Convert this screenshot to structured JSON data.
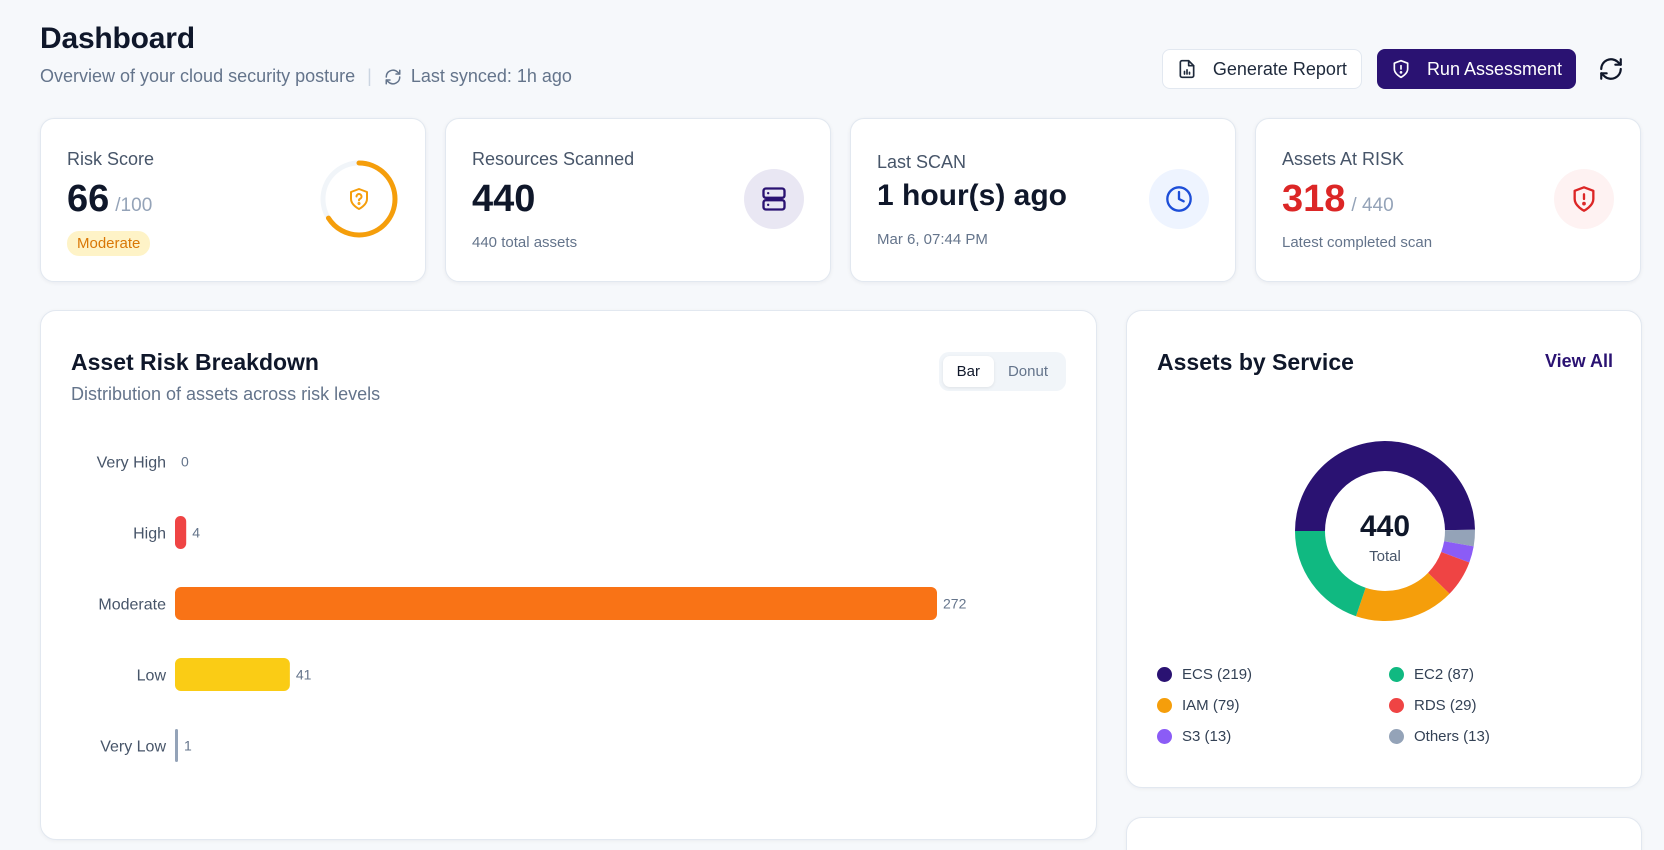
{
  "header": {
    "title": "Dashboard",
    "subtitle": "Overview of your cloud security posture",
    "separator": "|",
    "last_synced": "Last synced: 1h ago",
    "generate_report_label": "Generate Report",
    "run_assessment_label": "Run Assessment"
  },
  "cards": {
    "risk": {
      "label": "Risk Score",
      "value": "66",
      "suffix": "/100",
      "badge": "Moderate",
      "score_fraction": 0.66,
      "color": "#f59e0b",
      "icon": "shield-question-icon"
    },
    "resources": {
      "label": "Resources Scanned",
      "value": "440",
      "note": "440 total assets",
      "icon": "server-icon"
    },
    "scan": {
      "label": "Last SCAN",
      "value": "1 hour(s) ago",
      "note": "Mar 6, 07:44 PM",
      "icon": "clock-icon"
    },
    "at_risk": {
      "label": "Assets At RISK",
      "value": "318",
      "suffix": "/ 440",
      "note": "Latest completed scan",
      "color": "#dc2626",
      "icon": "shield-alert-icon"
    }
  },
  "breakdown": {
    "title": "Asset Risk Breakdown",
    "subtitle": "Distribution of assets across risk levels",
    "toggle": {
      "bar": "Bar",
      "donut": "Donut",
      "active": "Bar"
    }
  },
  "services": {
    "title": "Assets by Service",
    "view_all": "View All",
    "total_value": "440",
    "total_label": "Total",
    "legend": [
      {
        "label": "ECS (219)",
        "color": "#2a1272"
      },
      {
        "label": "EC2 (87)",
        "color": "#10b981"
      },
      {
        "label": "IAM (79)",
        "color": "#f59e0b"
      },
      {
        "label": "RDS (29)",
        "color": "#ef4444"
      },
      {
        "label": "S3 (13)",
        "color": "#8b5cf6"
      },
      {
        "label": "Others (13)",
        "color": "#94a3b8"
      }
    ]
  },
  "chart_data": [
    {
      "type": "bar",
      "orientation": "horizontal",
      "categories": [
        "Very High",
        "High",
        "Moderate",
        "Low",
        "Very Low"
      ],
      "values": [
        0,
        4,
        272,
        41,
        1
      ],
      "colors": [
        "#b91c1c",
        "#ef4444",
        "#f97316",
        "#facc15",
        "#94a3b8"
      ],
      "xlim": [
        0,
        272
      ],
      "grid": false
    },
    {
      "type": "pie",
      "style": "donut",
      "start": "9 o'clock",
      "direction": "clockwise",
      "categories": [
        "ECS",
        "Others",
        "S3",
        "RDS",
        "IAM",
        "EC2"
      ],
      "values": [
        219,
        13,
        13,
        29,
        79,
        87
      ],
      "colors": [
        "#2a1272",
        "#94a3b8",
        "#8b5cf6",
        "#ef4444",
        "#f59e0b",
        "#10b981"
      ]
    }
  ]
}
